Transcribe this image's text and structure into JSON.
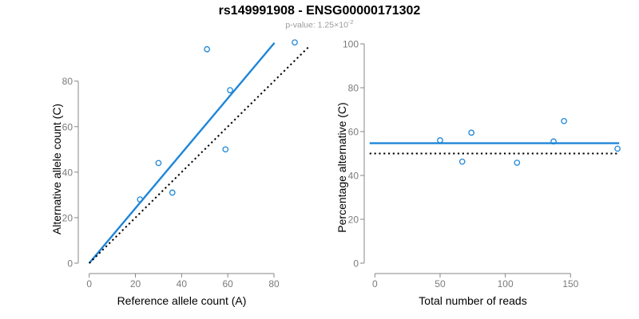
{
  "header": {
    "title": "rs149991908 - ENSG00000171302",
    "subtitle_base": "p-value: 1.25×10",
    "subtitle_exponent": "-2"
  },
  "colors": {
    "accent_blue": "#1E86D8",
    "dotted_black": "#000000",
    "axis_gray": "#878787",
    "tick_label_gray": "#7b7b7b",
    "subtitle_gray": "#9b9b9b"
  },
  "chart_data": [
    {
      "type": "scatter",
      "name": "allele-counts-plot",
      "xlabel": "Reference allele count (A)",
      "ylabel": "Alternative allele count (C)",
      "xticks": [
        0,
        20,
        40,
        60,
        80
      ],
      "yticks": [
        0,
        20,
        40,
        60,
        80
      ],
      "xlim": [
        0,
        95
      ],
      "ylim": [
        0,
        97
      ],
      "grid": false,
      "legend": "none",
      "points": [
        [
          22,
          28
        ],
        [
          30,
          44
        ],
        [
          36,
          31
        ],
        [
          51,
          94
        ],
        [
          59,
          50
        ],
        [
          61,
          76
        ],
        [
          89,
          97
        ]
      ],
      "lines": [
        {
          "name": "regression-line",
          "style": "solid",
          "color": "#1E86D8",
          "x": [
            0,
            80.2
          ],
          "y": [
            0,
            96.8
          ]
        },
        {
          "name": "identity-line",
          "style": "dotted",
          "color": "#000000",
          "x": [
            0,
            94.8
          ],
          "y": [
            0,
            94.8
          ]
        }
      ]
    },
    {
      "type": "scatter",
      "name": "percentage-vs-reads-plot",
      "xlabel": "Total number of reads",
      "ylabel": "Percentage alternative (C)",
      "xticks": [
        0,
        50,
        100,
        150
      ],
      "yticks": [
        0,
        20,
        40,
        60,
        80,
        100
      ],
      "xlim": [
        -4,
        188
      ],
      "ylim": [
        0,
        100
      ],
      "grid": false,
      "legend": "none",
      "points": [
        [
          50,
          56
        ],
        [
          67,
          46.3
        ],
        [
          74,
          59.5
        ],
        [
          109,
          45.8
        ],
        [
          137,
          55.5
        ],
        [
          145,
          64.8
        ],
        [
          186,
          52.2
        ]
      ],
      "lines": [
        {
          "name": "mean-percentage-line",
          "style": "solid",
          "color": "#1E86D8",
          "x": [
            -4,
            187.3
          ],
          "y": [
            54.7,
            54.7
          ]
        },
        {
          "name": "expected-50-line",
          "style": "dotted",
          "color": "#000000",
          "x": [
            -4,
            187.3
          ],
          "y": [
            50,
            50
          ]
        }
      ]
    }
  ]
}
